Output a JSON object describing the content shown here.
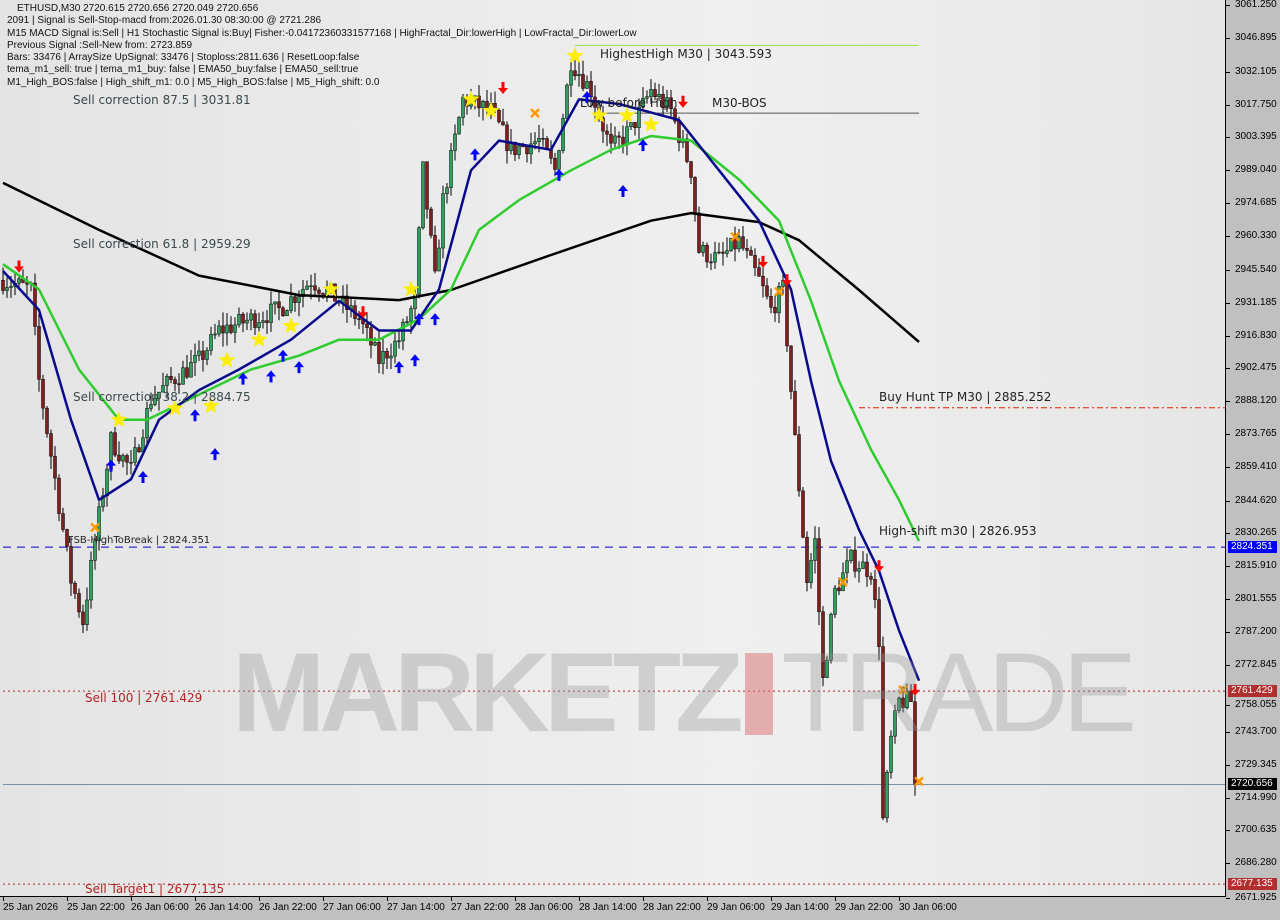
{
  "header": {
    "lines": [
      "ETHUSD,M30  2720.615 2720.656 2720.049 2720.656",
      "2091 | Signal is Sell-Stop-macd from:2026.01.30 08:30:00 @ 2721.286",
      "M15 MACD Signal is:Sell | H1 Stochastic Signal is:Buy| Fisher:-0.04172360331577168 | HighFractal_Dir:lowerHigh | LowFractal_Dir:lowerLow",
      "Previous Signal :Sell-New from: 2723.859",
      "Bars: 33476 | ArraySize UpSignal: 33476 | Stoploss:2811.636 | ResetLoop:false",
      "tema_m1_sell: true | tema_m1_buy: false | EMA50_buy:false | EMA50_sell:true",
      "M1_High_BOS:false | High_shift_m1: 0.0 | M5_High_BOS:false | M5_High_shift: 0.0"
    ]
  },
  "labels": {
    "sell_corr_875": "Sell correction 87.5 | 3031.81",
    "sell_corr_618": "Sell correction 61.8 | 2959.29",
    "sell_corr_382": "Sell correction 38.2 | 2884.75",
    "fsb": "FSB-HighToBreak | 2824.351",
    "sell100": "Sell 100 | 2761.429",
    "sell_target1": "Sell Target1 | 2677.135",
    "highest_high": "HighestHigh    M30 | 3043.593",
    "low_before_high": "Low before High",
    "m30_bos": "M30-BOS",
    "buy_hunt_tp": "Buy Hunt TP M30 | 2885.252",
    "high_shift": "High-shift m30 | 2826.953"
  },
  "watermark": {
    "left": "MARKETZ",
    "right": "TRADE"
  },
  "chart_data": {
    "type": "candlestick",
    "symbol": "ETHUSD",
    "timeframe": "M30",
    "ylim": [
      2671.925,
      3061.25
    ],
    "y_ticks": [
      "3061.250",
      "3046.895",
      "3032.105",
      "3017.750",
      "3003.395",
      "2989.040",
      "2974.685",
      "2960.330",
      "2945.540",
      "2931.185",
      "2916.830",
      "2902.475",
      "2888.120",
      "2873.765",
      "2859.410",
      "2844.620",
      "2830.265",
      "2815.910",
      "2801.555",
      "2787.200",
      "2772.845",
      "2758.055",
      "2743.700",
      "2729.345",
      "2714.990",
      "2700.635",
      "2686.280",
      "2671.925"
    ],
    "x_ticks": [
      {
        "label": "25 Jan 2026",
        "time": "2026-01-25 14:00"
      },
      {
        "label": "25 Jan 22:00",
        "time": "2026-01-25 22:00"
      },
      {
        "label": "26 Jan 06:00",
        "time": "2026-01-26 06:00"
      },
      {
        "label": "26 Jan 14:00",
        "time": "2026-01-26 14:00"
      },
      {
        "label": "26 Jan 22:00",
        "time": "2026-01-26 22:00"
      },
      {
        "label": "27 Jan 06:00",
        "time": "2026-01-27 06:00"
      },
      {
        "label": "27 Jan 14:00",
        "time": "2026-01-27 14:00"
      },
      {
        "label": "27 Jan 22:00",
        "time": "2026-01-27 22:00"
      },
      {
        "label": "28 Jan 06:00",
        "time": "2026-01-28 06:00"
      },
      {
        "label": "28 Jan 14:00",
        "time": "2026-01-28 14:00"
      },
      {
        "label": "28 Jan 22:00",
        "time": "2026-01-28 22:00"
      },
      {
        "label": "29 Jan 06:00",
        "time": "2026-01-29 06:00"
      },
      {
        "label": "29 Jan 14:00",
        "time": "2026-01-29 14:00"
      },
      {
        "label": "29 Jan 22:00",
        "time": "2026-01-29 22:00"
      },
      {
        "label": "30 Jan 06:00",
        "time": "2026-01-30 06:00"
      }
    ],
    "close_path": [
      [
        "2026-01-25 14:00",
        2941
      ],
      [
        "2026-01-25 17:30",
        2937
      ],
      [
        "2026-01-25 18:30",
        2897
      ],
      [
        "2026-01-25 20:30",
        2854
      ],
      [
        "2026-01-25 22:30",
        2810
      ],
      [
        "2026-01-26 00:00",
        2792
      ],
      [
        "2026-01-26 01:30",
        2827
      ],
      [
        "2026-01-26 03:30",
        2871
      ],
      [
        "2026-01-26 06:00",
        2858
      ],
      [
        "2026-01-26 08:30",
        2889
      ],
      [
        "2026-01-26 11:00",
        2897
      ],
      [
        "2026-01-26 14:30",
        2906
      ],
      [
        "2026-01-26 17:00",
        2919
      ],
      [
        "2026-01-26 21:00",
        2924
      ],
      [
        "2026-01-27 00:30",
        2928
      ],
      [
        "2026-01-27 04:30",
        2941
      ],
      [
        "2026-01-27 07:00",
        2935
      ],
      [
        "2026-01-27 10:30",
        2924
      ],
      [
        "2026-01-27 13:00",
        2906
      ],
      [
        "2026-01-27 15:30",
        2915
      ],
      [
        "2026-01-27 17:30",
        2932
      ],
      [
        "2026-01-27 18:30",
        2989
      ],
      [
        "2026-01-27 20:00",
        2941
      ],
      [
        "2026-01-27 21:00",
        2976
      ],
      [
        "2026-01-27 23:30",
        3020
      ],
      [
        "2026-01-28 03:00",
        3015
      ],
      [
        "2026-01-28 05:30",
        2998
      ],
      [
        "2026-01-28 09:00",
        3002
      ],
      [
        "2026-01-28 11:00",
        2989
      ],
      [
        "2026-01-28 13:00",
        3037
      ],
      [
        "2026-01-28 15:30",
        3024
      ],
      [
        "2026-01-28 18:00",
        2998
      ],
      [
        "2026-01-28 20:30",
        3007
      ],
      [
        "2026-01-28 23:00",
        3024
      ],
      [
        "2026-01-29 01:30",
        3015
      ],
      [
        "2026-01-29 04:00",
        2989
      ],
      [
        "2026-01-29 05:00",
        2954
      ],
      [
        "2026-01-29 07:30",
        2950
      ],
      [
        "2026-01-29 10:00",
        2958
      ],
      [
        "2026-01-29 12:30",
        2941
      ],
      [
        "2026-01-29 14:00",
        2928
      ],
      [
        "2026-01-29 15:30",
        2937
      ],
      [
        "2026-01-29 17:00",
        2871
      ],
      [
        "2026-01-29 18:30",
        2810
      ],
      [
        "2026-01-29 19:30",
        2827
      ],
      [
        "2026-01-29 20:30",
        2766
      ],
      [
        "2026-01-29 22:00",
        2805
      ],
      [
        "2026-01-30 00:00",
        2819
      ],
      [
        "2026-01-30 02:30",
        2814
      ],
      [
        "2026-01-30 03:30",
        2784
      ],
      [
        "2026-01-30 04:00",
        2705
      ],
      [
        "2026-01-30 05:00",
        2740
      ],
      [
        "2026-01-30 06:00",
        2757
      ],
      [
        "2026-01-30 07:30",
        2757
      ],
      [
        "2026-01-30 08:00",
        2720.656
      ]
    ],
    "last_price": 2720.656,
    "series": [
      {
        "color": "#000000",
        "points": [
          [
            "2026-01-25 14:00",
            2983.5
          ],
          [
            "2026-01-26 02:00",
            2963
          ],
          [
            "2026-01-26 14:30",
            2943
          ],
          [
            "2026-01-27 03:00",
            2934.5
          ],
          [
            "2026-01-27 15:30",
            2932.3
          ],
          [
            "2026-01-27 22:00",
            2936.7
          ],
          [
            "2026-01-28 10:30",
            2952
          ],
          [
            "2026-01-28 23:00",
            2967
          ],
          [
            "2026-01-29 04:00",
            2970.3
          ],
          [
            "2026-01-29 12:30",
            2966.4
          ],
          [
            "2026-01-29 17:30",
            2958.5
          ],
          [
            "2026-01-30 01:00",
            2936.7
          ],
          [
            "2026-01-30 08:30",
            2914
          ]
        ]
      },
      {
        "color": "#2ecc2e",
        "points": [
          [
            "2026-01-25 14:00",
            2948
          ],
          [
            "2026-01-25 18:30",
            2937
          ],
          [
            "2026-01-25 23:30",
            2902
          ],
          [
            "2026-01-26 04:30",
            2880
          ],
          [
            "2026-01-26 08:00",
            2880
          ],
          [
            "2026-01-26 14:30",
            2891
          ],
          [
            "2026-01-26 21:00",
            2902
          ],
          [
            "2026-01-27 03:00",
            2908
          ],
          [
            "2026-01-27 08:00",
            2915
          ],
          [
            "2026-01-27 13:00",
            2915
          ],
          [
            "2026-01-27 18:00",
            2924
          ],
          [
            "2026-01-27 22:00",
            2937
          ],
          [
            "2026-01-28 01:30",
            2963
          ],
          [
            "2026-01-28 06:30",
            2976
          ],
          [
            "2026-01-28 13:00",
            2989
          ],
          [
            "2026-01-28 18:00",
            2998
          ],
          [
            "2026-01-28 23:00",
            3004
          ],
          [
            "2026-01-29 04:00",
            3002
          ],
          [
            "2026-01-29 10:00",
            2985
          ],
          [
            "2026-01-29 15:00",
            2967
          ],
          [
            "2026-01-29 19:00",
            2932
          ],
          [
            "2026-01-29 22:30",
            2897
          ],
          [
            "2026-01-30 02:30",
            2867
          ],
          [
            "2026-01-30 06:00",
            2845
          ],
          [
            "2026-01-30 08:30",
            2827
          ]
        ]
      },
      {
        "color": "#0a0a8c",
        "points": [
          [
            "2026-01-25 14:00",
            2945
          ],
          [
            "2026-01-25 18:30",
            2928
          ],
          [
            "2026-01-25 22:30",
            2880
          ],
          [
            "2026-01-26 02:00",
            2845
          ],
          [
            "2026-01-26 06:00",
            2854
          ],
          [
            "2026-01-26 09:30",
            2880
          ],
          [
            "2026-01-26 14:30",
            2893
          ],
          [
            "2026-01-26 19:30",
            2902
          ],
          [
            "2026-01-27 02:00",
            2915
          ],
          [
            "2026-01-27 08:00",
            2932
          ],
          [
            "2026-01-27 13:00",
            2919
          ],
          [
            "2026-01-27 17:00",
            2919
          ],
          [
            "2026-01-27 20:30",
            2937
          ],
          [
            "2026-01-28 00:30",
            2989
          ],
          [
            "2026-01-28 04:00",
            3002
          ],
          [
            "2026-01-28 10:30",
            2998
          ],
          [
            "2026-01-28 14:00",
            3020
          ],
          [
            "2026-01-28 19:00",
            3018
          ],
          [
            "2026-01-29 02:30",
            3011
          ],
          [
            "2026-01-29 07:30",
            2989
          ],
          [
            "2026-01-29 12:30",
            2967
          ],
          [
            "2026-01-29 16:30",
            2937
          ],
          [
            "2026-01-29 19:00",
            2897
          ],
          [
            "2026-01-29 21:30",
            2862
          ],
          [
            "2026-01-30 01:00",
            2832
          ],
          [
            "2026-01-30 03:30",
            2814
          ],
          [
            "2026-01-30 06:00",
            2788
          ],
          [
            "2026-01-30 08:30",
            2766
          ]
        ]
      }
    ],
    "levels": [
      {
        "name": "fsb-high-to-break",
        "price": 2824.351,
        "color": "#0000cc",
        "style": "dashed",
        "from": "2026-01-25 14:00",
        "badge_color": "#0000ff"
      },
      {
        "name": "sell-100",
        "price": 2761.429,
        "color": "#a52a2a",
        "style": "dotted",
        "from": "2026-01-25 14:00",
        "badge_color": "#b03030"
      },
      {
        "name": "sell-target1",
        "price": 2677.135,
        "color": "#a52a2a",
        "style": "dotted",
        "from": "2026-01-25 14:00",
        "badge_color": "#b03030"
      },
      {
        "name": "current-price",
        "price": 2720.656,
        "color": "#7890a8",
        "style": "solid",
        "from": "2026-01-25 14:00",
        "badge_color": "#000000"
      },
      {
        "name": "buy-hunt-tp",
        "price": 2885.252,
        "color": "#dd2200",
        "style": "dashdot",
        "from": "2026-01-30 01:00"
      },
      {
        "name": "highest-high",
        "price": 3043.593,
        "color": "#a0e040",
        "style": "solid",
        "from": "2026-01-28 13:30",
        "to": "2026-01-30 08:30"
      },
      {
        "name": "m30-bos",
        "price": 3014,
        "color": "#555555",
        "style": "solid",
        "from": "2026-01-28 16:30",
        "to": "2026-01-30 08:30"
      }
    ],
    "markers": [
      {
        "type": "star",
        "time": "2026-01-28 13:30",
        "price": 3039
      },
      {
        "type": "star",
        "time": "2026-01-28 00:30",
        "price": 3020
      },
      {
        "type": "star",
        "time": "2026-01-28 03:00",
        "price": 3015
      },
      {
        "type": "star",
        "time": "2026-01-28 16:30",
        "price": 3013
      },
      {
        "type": "star",
        "time": "2026-01-28 20:00",
        "price": 3013
      },
      {
        "type": "star",
        "time": "2026-01-28 23:00",
        "price": 3009
      },
      {
        "type": "star",
        "time": "2026-01-27 17:00",
        "price": 2937
      },
      {
        "type": "star",
        "time": "2026-01-27 07:00",
        "price": 2937
      },
      {
        "type": "star",
        "time": "2026-01-27 02:00",
        "price": 2921
      },
      {
        "type": "star",
        "time": "2026-01-26 22:00",
        "price": 2915
      },
      {
        "type": "star",
        "time": "2026-01-26 18:00",
        "price": 2906
      },
      {
        "type": "star",
        "time": "2026-01-26 11:30",
        "price": 2885
      },
      {
        "type": "star",
        "time": "2026-01-26 04:30",
        "price": 2880
      },
      {
        "type": "star",
        "time": "2026-01-26 16:00",
        "price": 2886
      },
      {
        "type": "buy-arrow",
        "time": "2026-01-26 16:30",
        "price": 2865
      },
      {
        "type": "buy-arrow",
        "time": "2026-01-26 03:30",
        "price": 2860
      },
      {
        "type": "buy-arrow",
        "time": "2026-01-26 07:30",
        "price": 2855
      },
      {
        "type": "buy-arrow",
        "time": "2026-01-26 14:00",
        "price": 2882
      },
      {
        "type": "buy-arrow",
        "time": "2026-01-26 20:00",
        "price": 2898
      },
      {
        "type": "buy-arrow",
        "time": "2026-01-26 23:30",
        "price": 2899
      },
      {
        "type": "buy-arrow",
        "time": "2026-01-27 03:00",
        "price": 2903
      },
      {
        "type": "buy-arrow",
        "time": "2026-01-27 01:00",
        "price": 2908
      },
      {
        "type": "buy-arrow",
        "time": "2026-01-27 15:30",
        "price": 2903
      },
      {
        "type": "buy-arrow",
        "time": "2026-01-27 17:30",
        "price": 2906
      },
      {
        "type": "buy-arrow",
        "time": "2026-01-27 18:00",
        "price": 2924
      },
      {
        "type": "buy-arrow",
        "time": "2026-01-27 20:00",
        "price": 2924
      },
      {
        "type": "buy-arrow",
        "time": "2026-01-28 01:00",
        "price": 2996
      },
      {
        "type": "buy-arrow",
        "time": "2026-01-28 11:30",
        "price": 2987
      },
      {
        "type": "buy-arrow",
        "time": "2026-01-28 15:00",
        "price": 3021
      },
      {
        "type": "buy-arrow",
        "time": "2026-01-28 19:30",
        "price": 2980
      },
      {
        "type": "buy-arrow",
        "time": "2026-01-28 22:00",
        "price": 3000
      },
      {
        "type": "sell-arrow",
        "time": "2026-01-25 16:00",
        "price": 2947
      },
      {
        "type": "sell-arrow",
        "time": "2026-01-27 11:00",
        "price": 2927
      },
      {
        "type": "sell-arrow",
        "time": "2026-01-28 04:30",
        "price": 3025
      },
      {
        "type": "sell-arrow",
        "time": "2026-01-29 03:00",
        "price": 3019
      },
      {
        "type": "sell-arrow",
        "time": "2026-01-29 13:00",
        "price": 2949
      },
      {
        "type": "sell-arrow",
        "time": "2026-01-29 16:00",
        "price": 2941
      },
      {
        "type": "sell-arrow",
        "time": "2026-01-30 03:30",
        "price": 2816
      },
      {
        "type": "sell-arrow",
        "time": "2026-01-30 08:00",
        "price": 2762
      },
      {
        "type": "exit-cross",
        "time": "2026-01-26 01:30",
        "price": 2833
      },
      {
        "type": "exit-cross",
        "time": "2026-01-28 08:30",
        "price": 3014
      },
      {
        "type": "exit-cross",
        "time": "2026-01-29 09:30",
        "price": 2960
      },
      {
        "type": "exit-cross",
        "time": "2026-01-29 15:00",
        "price": 2936
      },
      {
        "type": "exit-cross",
        "time": "2026-01-29 23:00",
        "price": 2809
      },
      {
        "type": "exit-cross",
        "time": "2026-01-30 06:30",
        "price": 2762
      },
      {
        "type": "exit-cross",
        "time": "2026-01-30 08:30",
        "price": 2722
      }
    ],
    "colors": {
      "bull": "#26a65b",
      "bear": "#8b1a1a",
      "star": "#ffee00",
      "buy": "#0000ff",
      "sell": "#ff0000",
      "cross": "#ff9900"
    }
  }
}
